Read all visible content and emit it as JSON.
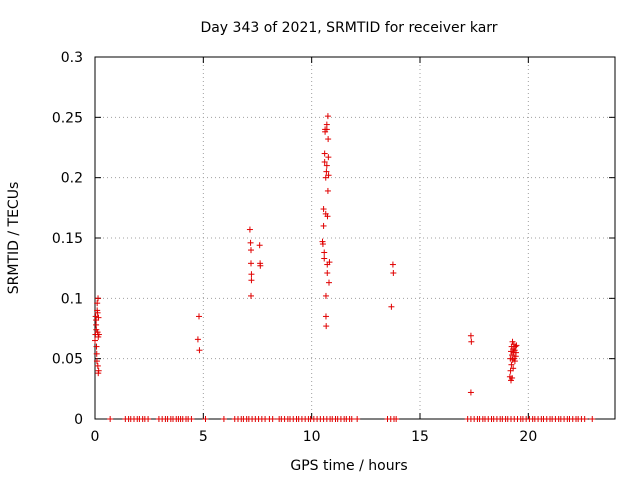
{
  "chart_data": {
    "type": "scatter",
    "title": "Day 343 of 2021, SRMTID for receiver karr",
    "xlabel": "GPS time / hours",
    "ylabel": "SRMTID / TECUs",
    "xlim": [
      0,
      24
    ],
    "ylim": [
      0,
      0.3
    ],
    "xticks": [
      0,
      5,
      10,
      15,
      20
    ],
    "xtick_labels": [
      "0",
      "5",
      "10",
      "15",
      "20"
    ],
    "yticks": [
      0,
      0.05,
      0.1,
      0.15,
      0.2,
      0.25,
      0.3
    ],
    "ytick_labels": [
      "0",
      "0.05",
      "0.1",
      "0.15",
      "0.2",
      "0.25",
      "0.3"
    ],
    "grid": true,
    "marker": "+",
    "series_color": "#e00000",
    "series": [
      {
        "name": "SRMTID",
        "points": [
          [
            0.0,
            0.065
          ],
          [
            0.02,
            0.07
          ],
          [
            0.03,
            0.085
          ],
          [
            0.05,
            0.082
          ],
          [
            0.05,
            0.078
          ],
          [
            0.06,
            0.074
          ],
          [
            0.07,
            0.06
          ],
          [
            0.08,
            0.054
          ],
          [
            0.09,
            0.048
          ],
          [
            0.1,
            0.096
          ],
          [
            0.1,
            0.09
          ],
          [
            0.12,
            0.088
          ],
          [
            0.12,
            0.072
          ],
          [
            0.13,
            0.044
          ],
          [
            0.14,
            0.1
          ],
          [
            0.15,
            0.068
          ],
          [
            0.15,
            0.038
          ],
          [
            0.16,
            0.084
          ],
          [
            0.17,
            0.04
          ],
          [
            0.18,
            0.07
          ],
          [
            4.8,
            0.085
          ],
          [
            4.75,
            0.066
          ],
          [
            4.82,
            0.057
          ],
          [
            7.15,
            0.157
          ],
          [
            7.18,
            0.146
          ],
          [
            7.2,
            0.14
          ],
          [
            7.2,
            0.129
          ],
          [
            7.22,
            0.12
          ],
          [
            7.22,
            0.115
          ],
          [
            7.2,
            0.102
          ],
          [
            7.6,
            0.144
          ],
          [
            7.62,
            0.129
          ],
          [
            7.63,
            0.127
          ],
          [
            10.5,
            0.147
          ],
          [
            10.52,
            0.145
          ],
          [
            10.55,
            0.16
          ],
          [
            10.55,
            0.174
          ],
          [
            10.58,
            0.138
          ],
          [
            10.58,
            0.133
          ],
          [
            10.6,
            0.213
          ],
          [
            10.6,
            0.22
          ],
          [
            10.62,
            0.24
          ],
          [
            10.62,
            0.238
          ],
          [
            10.65,
            0.2
          ],
          [
            10.65,
            0.17
          ],
          [
            10.66,
            0.102
          ],
          [
            10.66,
            0.085
          ],
          [
            10.67,
            0.077
          ],
          [
            10.68,
            0.205
          ],
          [
            10.7,
            0.244
          ],
          [
            10.7,
            0.24
          ],
          [
            10.7,
            0.21
          ],
          [
            10.72,
            0.128
          ],
          [
            10.72,
            0.121
          ],
          [
            10.73,
            0.168
          ],
          [
            10.75,
            0.251
          ],
          [
            10.75,
            0.189
          ],
          [
            10.76,
            0.232
          ],
          [
            10.77,
            0.217
          ],
          [
            10.78,
            0.202
          ],
          [
            10.8,
            0.113
          ],
          [
            10.82,
            0.13
          ],
          [
            13.68,
            0.093
          ],
          [
            13.75,
            0.128
          ],
          [
            13.77,
            0.121
          ],
          [
            17.35,
            0.069
          ],
          [
            17.37,
            0.064
          ],
          [
            17.35,
            0.022
          ],
          [
            19.15,
            0.035
          ],
          [
            19.17,
            0.05
          ],
          [
            19.18,
            0.04
          ],
          [
            19.2,
            0.056
          ],
          [
            19.2,
            0.032
          ],
          [
            19.22,
            0.045
          ],
          [
            19.23,
            0.06
          ],
          [
            19.25,
            0.053
          ],
          [
            19.25,
            0.034
          ],
          [
            19.27,
            0.064
          ],
          [
            19.28,
            0.049
          ],
          [
            19.3,
            0.058
          ],
          [
            19.3,
            0.042
          ],
          [
            19.32,
            0.055
          ],
          [
            19.33,
            0.062
          ],
          [
            19.35,
            0.05
          ],
          [
            19.37,
            0.057
          ],
          [
            19.38,
            0.048
          ],
          [
            19.4,
            0.06
          ],
          [
            19.42,
            0.052
          ],
          [
            19.43,
            0.055
          ],
          [
            19.45,
            0.061
          ]
        ],
        "zero_x": [
          0.7,
          1.4,
          1.55,
          1.65,
          1.8,
          1.95,
          2.05,
          2.2,
          2.3,
          2.45,
          2.95,
          3.1,
          3.25,
          3.35,
          3.5,
          3.6,
          3.75,
          3.85,
          3.95,
          4.05,
          4.2,
          4.3,
          4.45,
          5.1,
          5.95,
          6.45,
          6.6,
          6.75,
          6.85,
          7.0,
          7.1,
          7.25,
          7.4,
          7.55,
          7.7,
          7.85,
          8.05,
          8.2,
          8.5,
          8.6,
          8.75,
          8.9,
          9.0,
          9.15,
          9.3,
          9.4,
          9.55,
          9.7,
          9.85,
          9.95,
          10.1,
          10.25,
          10.4,
          10.55,
          10.7,
          10.85,
          10.95,
          11.1,
          11.2,
          11.35,
          11.5,
          11.6,
          11.75,
          11.85,
          12.1,
          13.5,
          13.65,
          13.8,
          13.9,
          17.2,
          17.35,
          17.5,
          17.65,
          17.75,
          17.9,
          18.0,
          18.15,
          18.3,
          18.4,
          18.55,
          18.7,
          18.8,
          18.95,
          19.05,
          19.2,
          19.35,
          19.5,
          19.65,
          19.75,
          19.9,
          20.05,
          20.2,
          20.3,
          20.45,
          20.6,
          20.7,
          20.85,
          21.0,
          21.1,
          21.25,
          21.4,
          21.5,
          21.65,
          21.8,
          21.9,
          22.05,
          22.2,
          22.3,
          22.45,
          22.6,
          22.95
        ]
      }
    ]
  }
}
